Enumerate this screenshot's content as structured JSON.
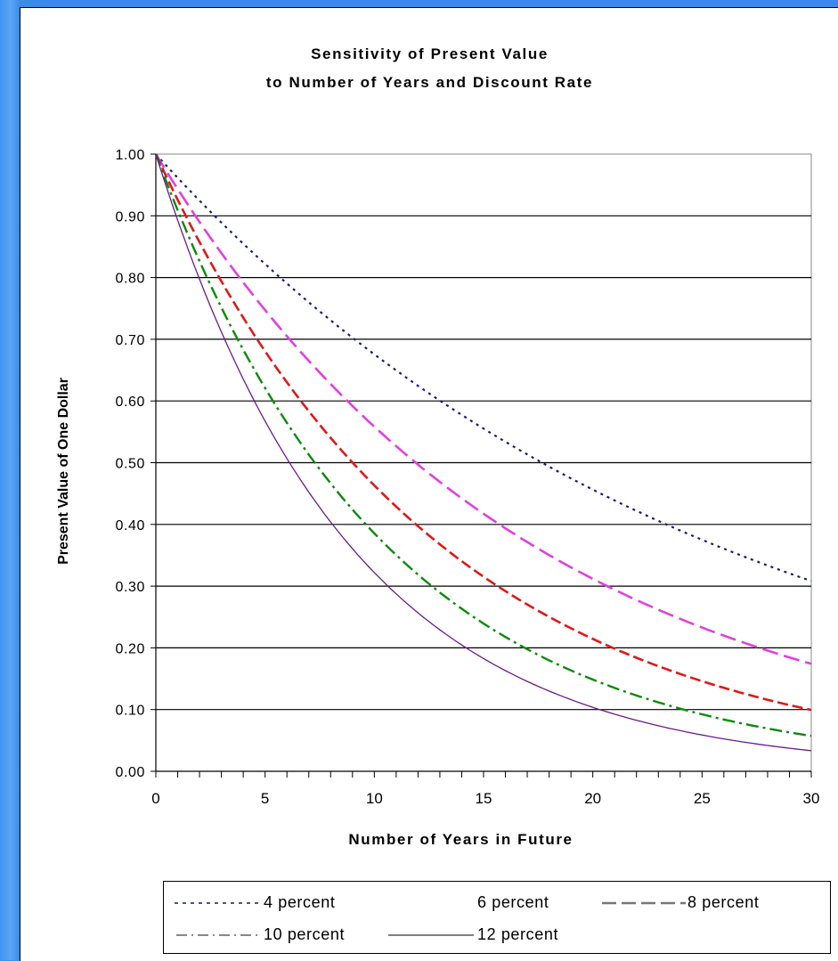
{
  "chart_data": {
    "type": "line",
    "title_lines": [
      "Sensitivity of Present Value",
      "to Number of Years and Discount Rate"
    ],
    "xlabel": "Number of Years in Future",
    "ylabel": "Present Value of One Dollar",
    "xlim": [
      0,
      30
    ],
    "ylim": [
      0,
      1.0
    ],
    "x_ticks": [
      "0",
      "5",
      "10",
      "15",
      "20",
      "25",
      "30"
    ],
    "y_ticks": [
      "0.00",
      "0.10",
      "0.20",
      "0.30",
      "0.40",
      "0.50",
      "0.60",
      "0.70",
      "0.80",
      "0.90",
      "1.00"
    ],
    "grid": true,
    "legend_position": "bottom",
    "series": [
      {
        "name": "4 percent",
        "rate": 0.04,
        "color": "#1a1a6e",
        "style": "dotted",
        "values": [
          1.0,
          0.96,
          0.92,
          0.89,
          0.85,
          0.82,
          0.79,
          0.76,
          0.73,
          0.7,
          0.68,
          0.65,
          0.62,
          0.6,
          0.58,
          0.56,
          0.53,
          0.51,
          0.49,
          0.47,
          0.46,
          0.44,
          0.42,
          0.41,
          0.39,
          0.38,
          0.36,
          0.35,
          0.33,
          0.32,
          0.31
        ]
      },
      {
        "name": "6 percent",
        "rate": 0.06,
        "color": "#e040e0",
        "style": "longdash",
        "values": [
          1.0,
          0.94,
          0.89,
          0.84,
          0.79,
          0.75,
          0.7,
          0.67,
          0.63,
          0.59,
          0.56,
          0.53,
          0.5,
          0.47,
          0.44,
          0.42,
          0.39,
          0.37,
          0.35,
          0.33,
          0.31,
          0.29,
          0.28,
          0.26,
          0.25,
          0.23,
          0.22,
          0.21,
          0.2,
          0.18,
          0.17
        ]
      },
      {
        "name": "8 percent",
        "rate": 0.08,
        "color": "#e01818",
        "style": "dashed",
        "values": [
          1.0,
          0.93,
          0.86,
          0.79,
          0.74,
          0.68,
          0.63,
          0.58,
          0.54,
          0.5,
          0.46,
          0.43,
          0.4,
          0.37,
          0.34,
          0.32,
          0.29,
          0.27,
          0.25,
          0.23,
          0.21,
          0.2,
          0.18,
          0.17,
          0.16,
          0.15,
          0.14,
          0.13,
          0.12,
          0.11,
          0.1
        ]
      },
      {
        "name": "10 percent",
        "rate": 0.1,
        "color": "#0a8a0a",
        "style": "dashdot",
        "values": [
          1.0,
          0.91,
          0.83,
          0.75,
          0.68,
          0.62,
          0.56,
          0.51,
          0.47,
          0.42,
          0.39,
          0.35,
          0.32,
          0.29,
          0.26,
          0.24,
          0.22,
          0.2,
          0.18,
          0.16,
          0.15,
          0.14,
          0.12,
          0.11,
          0.1,
          0.09,
          0.08,
          0.08,
          0.07,
          0.06,
          0.06
        ]
      },
      {
        "name": "12 percent",
        "rate": 0.12,
        "color": "#6a1a8a",
        "style": "solid",
        "values": [
          1.0,
          0.89,
          0.8,
          0.71,
          0.64,
          0.57,
          0.51,
          0.45,
          0.4,
          0.36,
          0.32,
          0.29,
          0.26,
          0.23,
          0.2,
          0.18,
          0.16,
          0.15,
          0.13,
          0.12,
          0.1,
          0.09,
          0.08,
          0.07,
          0.07,
          0.06,
          0.05,
          0.05,
          0.04,
          0.04,
          0.03
        ]
      }
    ]
  },
  "legend": {
    "items": [
      "4 percent",
      "6 percent",
      "8 percent",
      "10 percent",
      "12 percent"
    ]
  }
}
